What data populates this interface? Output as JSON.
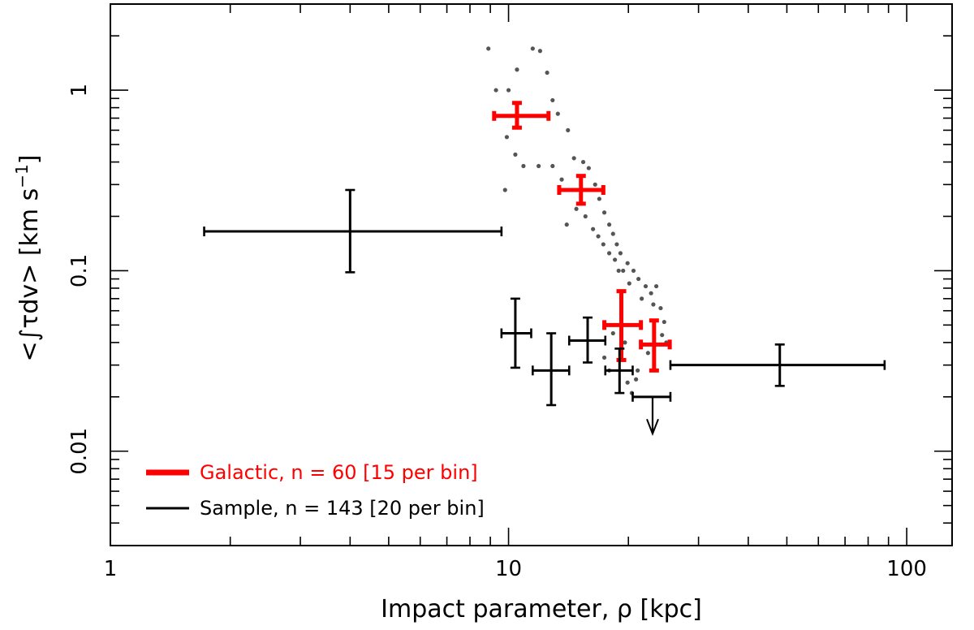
{
  "chart_data": {
    "type": "scatter",
    "xscale": "log",
    "yscale": "log",
    "xlim": [
      1,
      130
    ],
    "ylim": [
      0.003,
      3.0
    ],
    "xlabel": "Impact parameter, ρ [kpc]",
    "ylabel_main": "<∫τdv> [km s",
    "ylabel_sup": "−1",
    "ylabel_close": "]",
    "x_ticks": [
      {
        "value": 1,
        "label": "1"
      },
      {
        "value": 10,
        "label": "10"
      },
      {
        "value": 100,
        "label": "100"
      }
    ],
    "y_ticks": [
      {
        "value": 0.01,
        "label": "0.01"
      },
      {
        "value": 0.1,
        "label": "0.1"
      },
      {
        "value": 1,
        "label": "1"
      }
    ],
    "legend": {
      "placement": "bottom-left",
      "entries": [
        {
          "label": "Galactic, n = 60 [15 per bin]",
          "color": "#ff0000"
        },
        {
          "label": "Sample, n = 143 [20 per bin]",
          "color": "#000000"
        }
      ]
    },
    "series": [
      {
        "name": "Galactic",
        "color": "#ff0000",
        "points": [
          {
            "x": 10.5,
            "y": 0.72,
            "xlo": 9.2,
            "xhi": 12.6,
            "ylo": 0.62,
            "yhi": 0.85,
            "upper_limit": false
          },
          {
            "x": 15.2,
            "y": 0.28,
            "xlo": 13.4,
            "xhi": 17.3,
            "ylo": 0.235,
            "yhi": 0.335,
            "upper_limit": false
          },
          {
            "x": 19.2,
            "y": 0.05,
            "xlo": 17.4,
            "xhi": 21.5,
            "ylo": 0.032,
            "yhi": 0.077,
            "upper_limit": false
          },
          {
            "x": 23.2,
            "y": 0.039,
            "xlo": 21.5,
            "xhi": 25.4,
            "ylo": 0.028,
            "yhi": 0.053,
            "upper_limit": false
          }
        ]
      },
      {
        "name": "Sample",
        "color": "#000000",
        "points": [
          {
            "x": 4.0,
            "y": 0.165,
            "xlo": 1.72,
            "xhi": 9.6,
            "ylo": 0.098,
            "yhi": 0.28,
            "upper_limit": false
          },
          {
            "x": 10.4,
            "y": 0.045,
            "xlo": 9.6,
            "xhi": 11.4,
            "ylo": 0.029,
            "yhi": 0.07,
            "upper_limit": false
          },
          {
            "x": 12.8,
            "y": 0.028,
            "xlo": 11.5,
            "xhi": 14.2,
            "ylo": 0.018,
            "yhi": 0.045,
            "upper_limit": false
          },
          {
            "x": 15.8,
            "y": 0.041,
            "xlo": 14.2,
            "xhi": 17.5,
            "ylo": 0.031,
            "yhi": 0.055,
            "upper_limit": false
          },
          {
            "x": 19.0,
            "y": 0.028,
            "xlo": 17.5,
            "xhi": 20.5,
            "ylo": 0.021,
            "yhi": 0.037,
            "upper_limit": false
          },
          {
            "x": 23.0,
            "y": 0.02,
            "xlo": 20.5,
            "xhi": 25.5,
            "ylo": 0.0125,
            "yhi": 0.02,
            "upper_limit": true
          },
          {
            "x": 48.0,
            "y": 0.03,
            "xlo": 25.5,
            "xhi": 88.0,
            "ylo": 0.023,
            "yhi": 0.039,
            "upper_limit": false
          }
        ]
      }
    ],
    "scatter_points": [
      [
        8.9,
        1.7
      ],
      [
        9.3,
        1.0
      ],
      [
        10.0,
        1.0
      ],
      [
        10.5,
        1.3
      ],
      [
        11.5,
        1.7
      ],
      [
        12.0,
        1.65
      ],
      [
        12.5,
        1.25
      ],
      [
        12.9,
        0.88
      ],
      [
        13.3,
        0.74
      ],
      [
        9.9,
        0.55
      ],
      [
        10.4,
        0.44
      ],
      [
        10.9,
        0.38
      ],
      [
        11.9,
        0.38
      ],
      [
        12.9,
        0.38
      ],
      [
        13.6,
        0.32
      ],
      [
        14.1,
        0.6
      ],
      [
        14.6,
        0.42
      ],
      [
        15.4,
        0.4
      ],
      [
        15.9,
        0.37
      ],
      [
        16.5,
        0.3
      ],
      [
        16.9,
        0.25
      ],
      [
        17.4,
        0.21
      ],
      [
        17.9,
        0.18
      ],
      [
        18.3,
        0.16
      ],
      [
        18.7,
        0.14
      ],
      [
        19.1,
        0.125
      ],
      [
        9.8,
        0.28
      ],
      [
        14.0,
        0.18
      ],
      [
        14.8,
        0.22
      ],
      [
        15.6,
        0.2
      ],
      [
        16.3,
        0.17
      ],
      [
        16.8,
        0.155
      ],
      [
        17.3,
        0.14
      ],
      [
        17.9,
        0.125
      ],
      [
        18.5,
        0.115
      ],
      [
        18.9,
        0.1
      ],
      [
        19.4,
        0.1
      ],
      [
        19.9,
        0.11
      ],
      [
        20.6,
        0.1
      ],
      [
        21.2,
        0.09
      ],
      [
        22.1,
        0.082
      ],
      [
        22.8,
        0.075
      ],
      [
        23.5,
        0.082
      ],
      [
        24.1,
        0.062
      ],
      [
        20.1,
        0.085
      ],
      [
        21.6,
        0.07
      ],
      [
        23.1,
        0.065
      ],
      [
        24.6,
        0.052
      ],
      [
        24.9,
        0.04
      ],
      [
        24.3,
        0.044
      ],
      [
        22.4,
        0.035
      ],
      [
        19.6,
        0.04
      ],
      [
        18.3,
        0.045
      ],
      [
        20.9,
        0.025
      ],
      [
        19.9,
        0.024
      ],
      [
        20.4,
        0.021
      ],
      [
        21.1,
        0.028
      ],
      [
        17.4,
        0.033
      ],
      [
        17.9,
        0.028
      ]
    ]
  }
}
